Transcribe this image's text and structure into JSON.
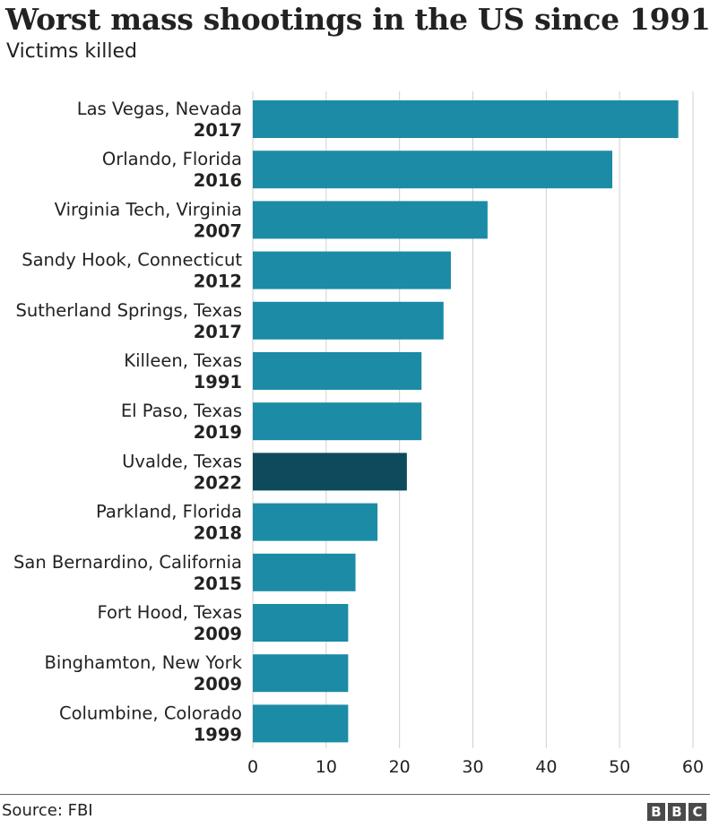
{
  "header": {
    "title": "Worst mass shootings in the US since 1991",
    "subtitle": "Victims killed"
  },
  "footer": {
    "source": "Source: FBI",
    "logo_letters": [
      "B",
      "B",
      "C"
    ]
  },
  "colors": {
    "bar": "#1b8ba6",
    "highlight": "#0d4a5c",
    "grid": "#d0d0d0",
    "text": "#222222"
  },
  "chart_data": {
    "type": "bar",
    "orientation": "horizontal",
    "title": "Worst mass shootings in the US since 1991",
    "subtitle": "Victims killed",
    "xlim": [
      0,
      60
    ],
    "xticks": [
      0,
      10,
      20,
      30,
      40,
      50,
      60
    ],
    "grid": "vertical",
    "highlight": "Uvalde, Texas",
    "items": [
      {
        "place": "Las Vegas, Nevada",
        "year": "2017",
        "value": 58
      },
      {
        "place": "Orlando, Florida",
        "year": "2016",
        "value": 49
      },
      {
        "place": "Virginia Tech, Virginia",
        "year": "2007",
        "value": 32
      },
      {
        "place": "Sandy Hook, Connecticut",
        "year": "2012",
        "value": 27
      },
      {
        "place": "Sutherland Springs, Texas",
        "year": "2017",
        "value": 26
      },
      {
        "place": "Killeen, Texas",
        "year": "1991",
        "value": 23
      },
      {
        "place": "El Paso, Texas",
        "year": "2019",
        "value": 23
      },
      {
        "place": "Uvalde, Texas",
        "year": "2022",
        "value": 21
      },
      {
        "place": "Parkland, Florida",
        "year": "2018",
        "value": 17
      },
      {
        "place": "San Bernardino, California",
        "year": "2015",
        "value": 14
      },
      {
        "place": "Fort Hood, Texas",
        "year": "2009",
        "value": 13
      },
      {
        "place": "Binghamton, New York",
        "year": "2009",
        "value": 13
      },
      {
        "place": "Columbine, Colorado",
        "year": "1999",
        "value": 13
      }
    ]
  }
}
